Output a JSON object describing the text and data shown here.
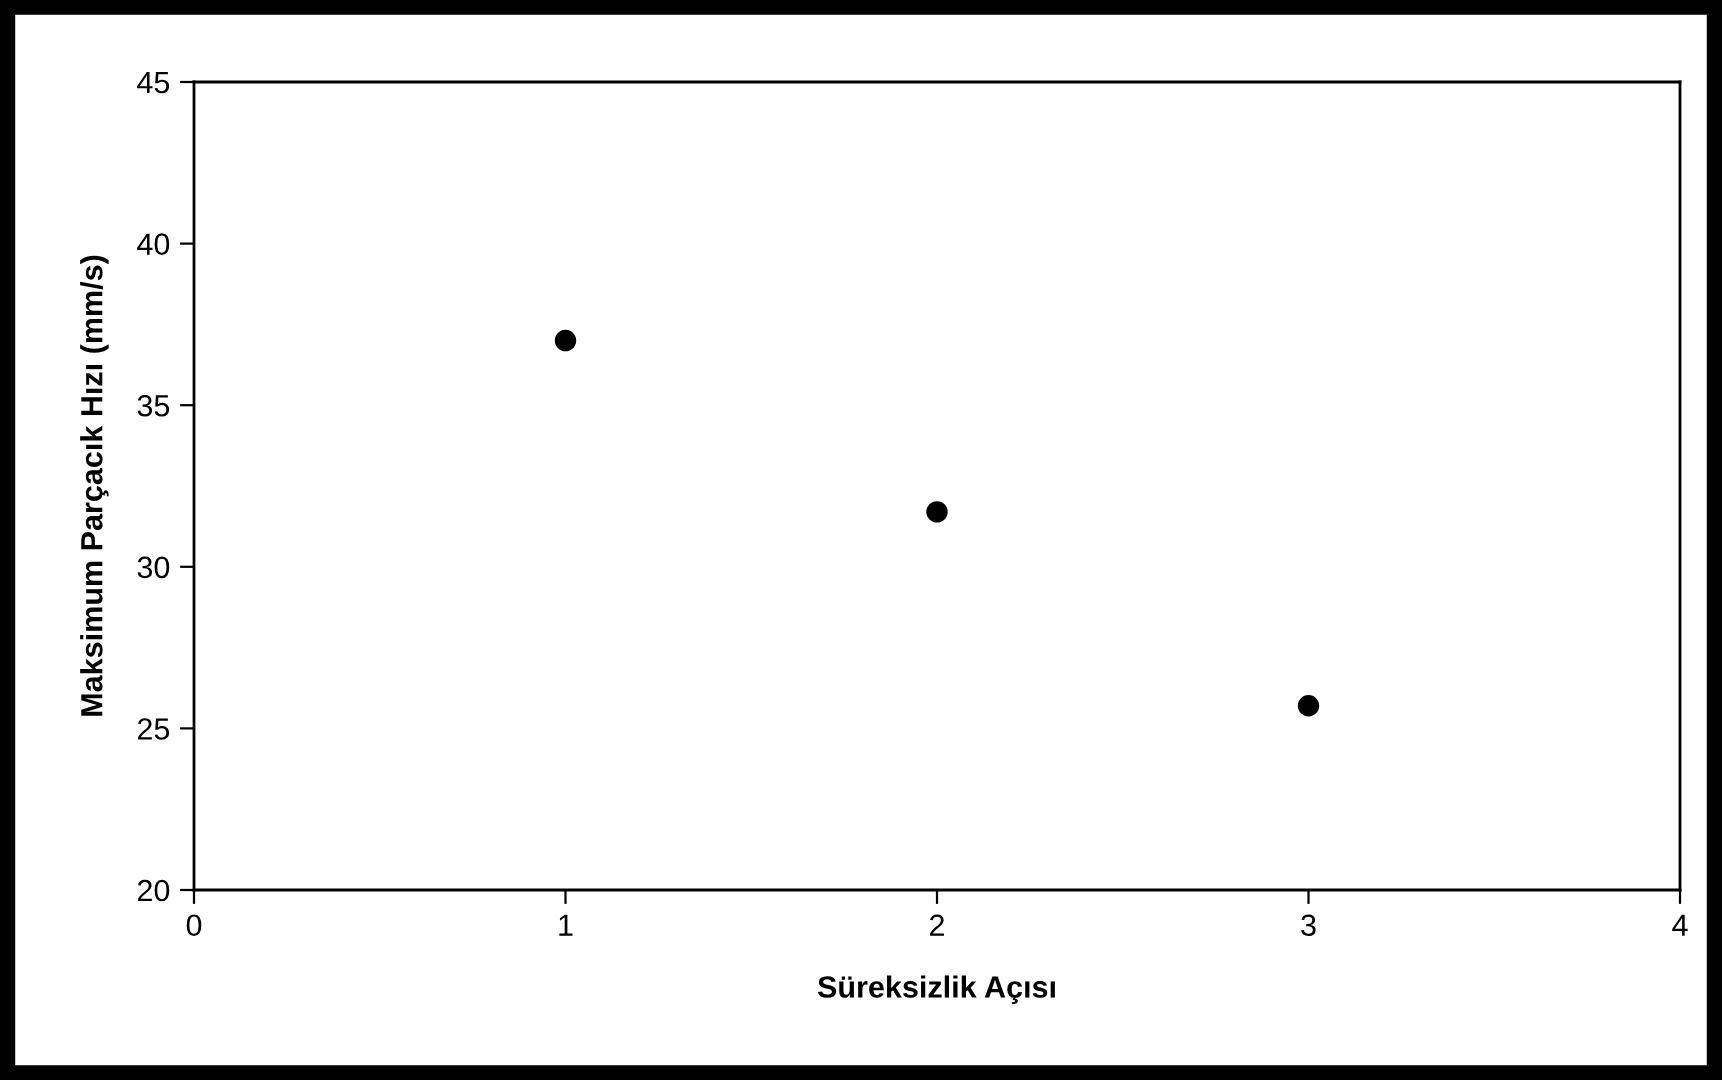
{
  "chart_data": {
    "type": "scatter",
    "xlabel": "Süreksizlik Açısı",
    "ylabel": "Maksimum Parçacık Hızı (mm/s)",
    "x": [
      1,
      2,
      3
    ],
    "values": [
      37.0,
      31.7,
      25.7
    ],
    "color": "#000000",
    "marker": "circle",
    "xlim": [
      0,
      4
    ],
    "xticks": [
      0,
      1,
      2,
      3,
      4
    ],
    "ylim": [
      20,
      45
    ],
    "yticks": [
      20,
      25,
      30,
      35,
      40,
      45
    ],
    "grid": false,
    "legend": false
  }
}
